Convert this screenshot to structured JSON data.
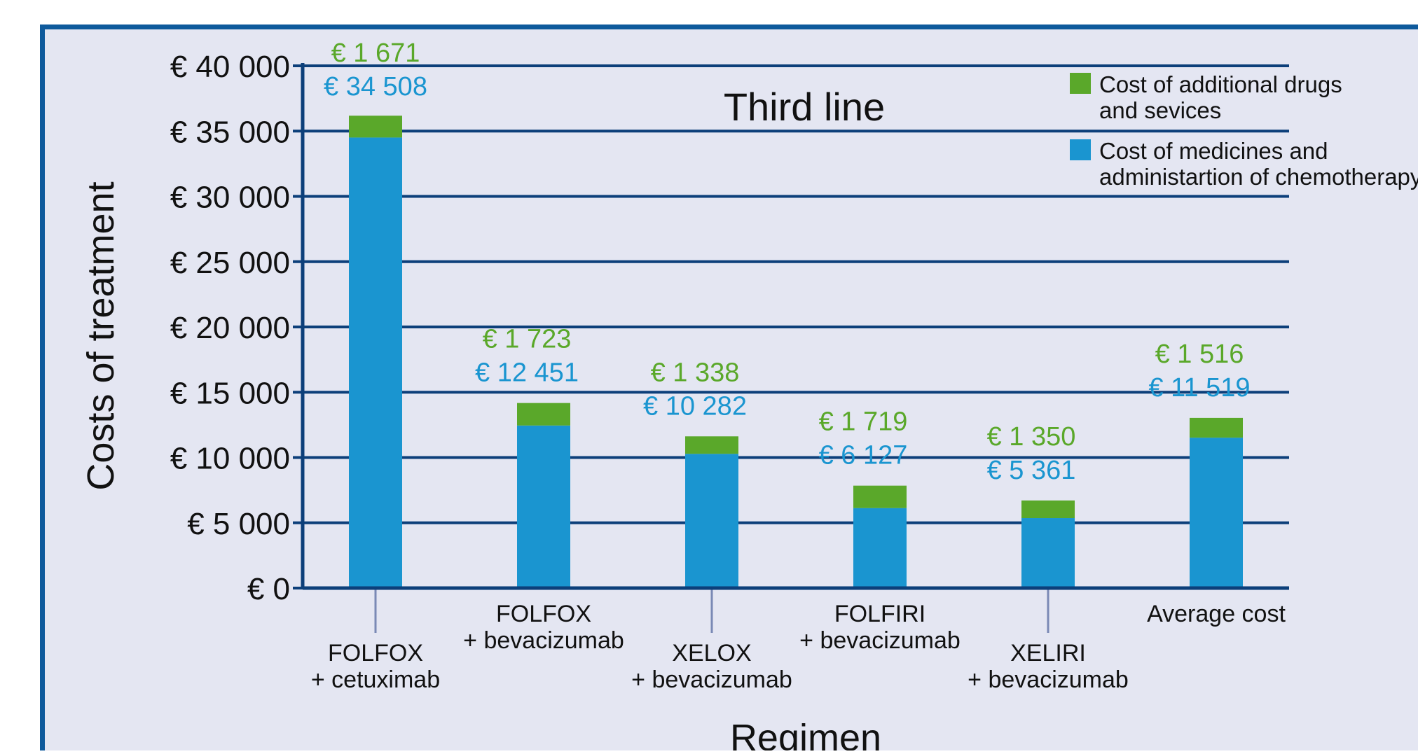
{
  "chart_data": {
    "type": "bar",
    "stacked": true,
    "title": "Third line",
    "xlabel": "Regimen",
    "ylabel": "Costs of treatment",
    "ylim": [
      0,
      40000
    ],
    "yticks": [
      0,
      5000,
      10000,
      15000,
      20000,
      25000,
      30000,
      35000,
      40000
    ],
    "ytick_labels": [
      "€ 0",
      "€ 5 000",
      "€ 10 000",
      "€ 15 000",
      "€ 20 000",
      "€ 25 000",
      "€ 30 000",
      "€ 35 000",
      "€ 40 000"
    ],
    "grid": true,
    "legend_position": "top-right",
    "categories": [
      [
        "FOLFOX",
        "+ cetuximab"
      ],
      [
        "FOLFOX",
        "+ bevacizumab"
      ],
      [
        "XELOX",
        "+ bevacizumab"
      ],
      [
        "FOLFIRI",
        "+ bevacizumab"
      ],
      [
        "XELIRI",
        "+ bevacizumab"
      ],
      [
        "Average cost"
      ]
    ],
    "series": [
      {
        "name": "Cost of medicines and administartion of chemotherapy",
        "legend_lines": [
          "Cost of medicines and",
          "administartion of chemotherapy"
        ],
        "color": "#1a95d0",
        "values": [
          34508,
          12451,
          10282,
          6127,
          5361,
          11519
        ],
        "labels": [
          "€ 34 508",
          "€ 12 451",
          "€ 10 282",
          "€ 6 127",
          "€ 5 361",
          "€ 11 519"
        ]
      },
      {
        "name": "Cost of additional drugs and sevices",
        "legend_lines": [
          "Cost of additional drugs",
          "and sevices"
        ],
        "color": "#5aa82a",
        "values": [
          1671,
          1723,
          1338,
          1719,
          1350,
          1516
        ],
        "labels": [
          "€ 1 671",
          "€ 1 723",
          "€ 1 338",
          "€ 1 719",
          "€ 1 350",
          "€ 1 516"
        ]
      }
    ],
    "colors": {
      "frame": "#0e5a9c",
      "background": "#e4e6f2",
      "gridline": "#0c3f7a",
      "axis_text": "#111111",
      "tick_connector": "#7a89b5"
    }
  }
}
